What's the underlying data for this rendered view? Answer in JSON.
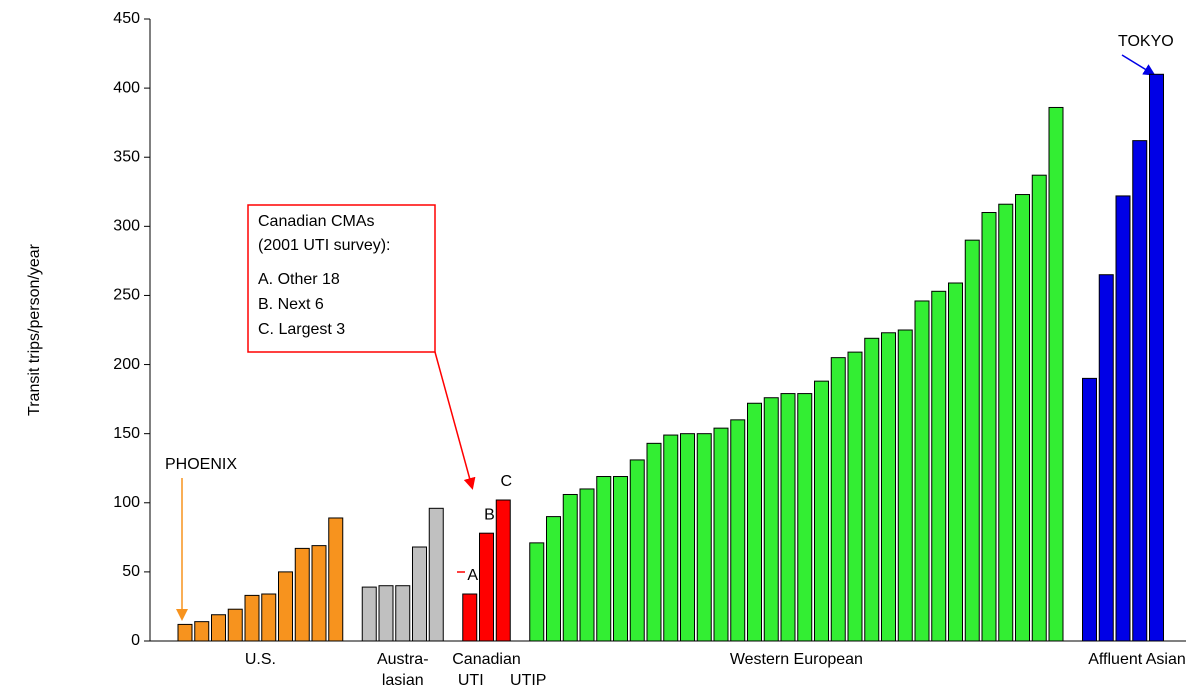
{
  "chart_data": {
    "type": "bar",
    "y_label": "Transit trips/person/year",
    "ylim": [
      0,
      450
    ],
    "yticks": [
      0,
      50,
      100,
      150,
      200,
      250,
      300,
      350,
      400,
      450
    ],
    "series": [
      {
        "name": "U.S.",
        "color": "#f7931e",
        "values": [
          12,
          14,
          19,
          23,
          33,
          34,
          50,
          67,
          69,
          89
        ]
      },
      {
        "name": "Austra-",
        "sublabels": [
          "lasian"
        ],
        "color": "#c0c0c0",
        "values": [
          39,
          40,
          40,
          68,
          96
        ]
      },
      {
        "name": "Canadian",
        "sublabels": [
          "UTI",
          "UTIP"
        ],
        "color": "#ff0000",
        "values": [
          34,
          78,
          102
        ],
        "point_labels": [
          "A",
          "B",
          "C"
        ]
      },
      {
        "name": "Western European",
        "color": "#33ee33",
        "values": [
          71,
          90,
          106,
          110,
          119,
          119,
          131,
          143,
          149,
          150,
          150,
          154,
          160,
          172,
          176,
          179,
          179,
          188,
          205,
          209,
          219,
          223,
          225,
          246,
          253,
          259,
          290,
          310,
          316,
          323,
          337,
          386
        ]
      },
      {
        "name": "Affluent  Asian",
        "color": "#0000e6",
        "values": [
          190,
          265,
          322,
          362,
          410
        ]
      }
    ],
    "annotations": {
      "phoenix": "PHOENIX",
      "tokyo": "TOKYO",
      "box_lines": [
        "Canadian  CMAs",
        "(2001 UTI survey):",
        "A.  Other 18",
        "B.  Next 6",
        "C.  Largest 3"
      ]
    }
  }
}
